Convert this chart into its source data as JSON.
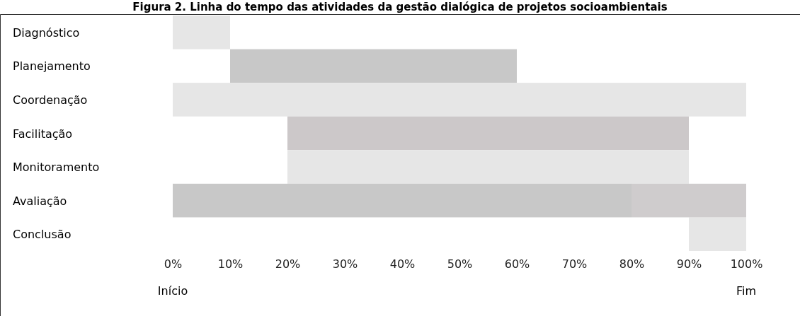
{
  "chart_data": {
    "type": "bar",
    "orientation": "horizontal",
    "stacked": true,
    "title": "Figura 2. Linha do tempo das atividades da gestão dialógica de projetos socioambientais",
    "categories": [
      "Diagnóstico",
      "Planejamento",
      "Coordenação",
      "Facilitação",
      "Monitoramento",
      "Avaliação",
      "Conclusão"
    ],
    "series": [
      {
        "base": [
          0,
          10,
          0,
          20,
          20,
          0,
          90
        ],
        "values": [
          10,
          50,
          100,
          70,
          70,
          80,
          10
        ],
        "colors": [
          "#e6e6e6",
          "#c8c8c8",
          "#e6e6e6",
          "#ccc8c9",
          "#e6e6e6",
          "#c8c8c8",
          "#e6e6e6"
        ]
      },
      {
        "values": [
          null,
          null,
          null,
          null,
          null,
          20,
          null
        ],
        "color": "#cfcccd"
      }
    ],
    "xlim": [
      0,
      100
    ],
    "xticks": [
      {
        "value": 0,
        "label": "0%"
      },
      {
        "value": 10,
        "label": "10%"
      },
      {
        "value": 20,
        "label": "20%"
      },
      {
        "value": 30,
        "label": "30%"
      },
      {
        "value": 40,
        "label": "40%"
      },
      {
        "value": 50,
        "label": "50%"
      },
      {
        "value": 60,
        "label": "60%"
      },
      {
        "value": 70,
        "label": "70%"
      },
      {
        "value": 80,
        "label": "80%"
      },
      {
        "value": 90,
        "label": "90%"
      },
      {
        "value": 100,
        "label": "100%"
      }
    ],
    "annotations": [
      "Início",
      "Fim"
    ],
    "grid": false
  }
}
